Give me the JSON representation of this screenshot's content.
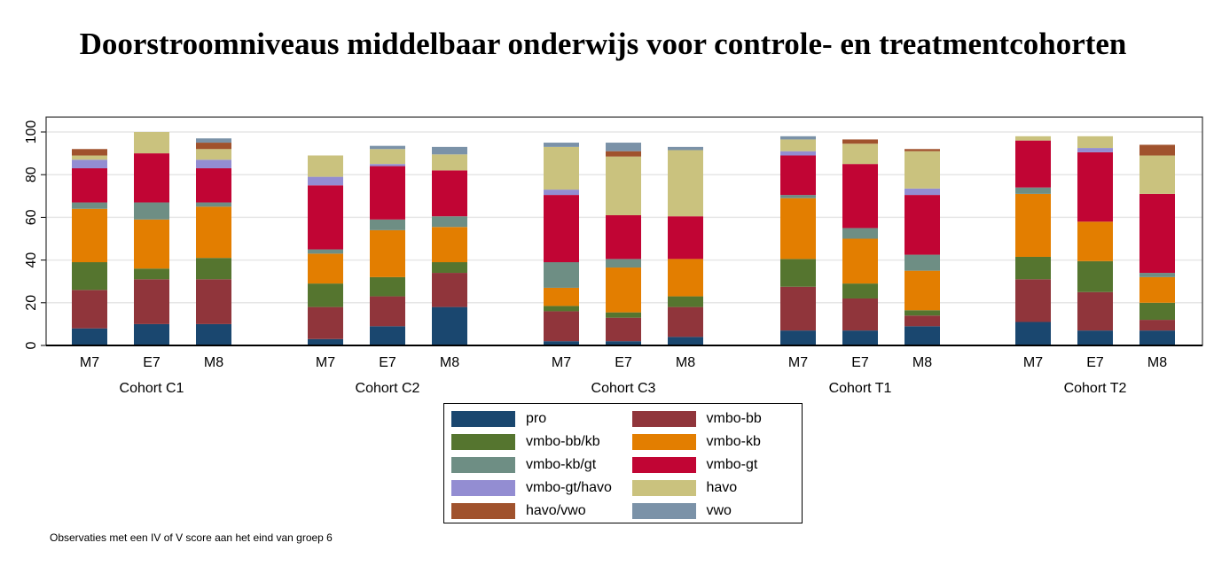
{
  "chart_data": {
    "type": "bar",
    "stacked": true,
    "title": "Doorstroomniveaus middelbaar onderwijs voor controle- en treatmentcohorten",
    "note": "Observaties met een IV of V score aan het eind van groep 6",
    "ylim": [
      0,
      107
    ],
    "yticks": [
      0,
      20,
      40,
      60,
      80,
      100
    ],
    "grid": true,
    "legend_position": "bottom",
    "groups": [
      "Cohort C1",
      "Cohort C2",
      "Cohort C3",
      "Cohort T1",
      "Cohort T2"
    ],
    "categories": [
      "M7",
      "E7",
      "M8"
    ],
    "series": [
      {
        "name": "pro",
        "color": "#1a476f",
        "values": [
          [
            8,
            10,
            10
          ],
          [
            3,
            9,
            18
          ],
          [
            2,
            2,
            4
          ],
          [
            7,
            7,
            9
          ],
          [
            11,
            7,
            7
          ]
        ]
      },
      {
        "name": "vmbo-bb",
        "color": "#90353b",
        "values": [
          [
            18,
            21,
            21
          ],
          [
            15,
            14,
            16
          ],
          [
            14,
            11,
            14
          ],
          [
            20.5,
            15,
            5
          ],
          [
            20,
            18,
            5
          ]
        ]
      },
      {
        "name": "vmbo-bb/kb",
        "color": "#55752f",
        "values": [
          [
            13,
            5,
            10
          ],
          [
            11,
            9,
            5
          ],
          [
            2.5,
            2.5,
            5
          ],
          [
            13,
            7,
            2.5
          ],
          [
            10.5,
            14.5,
            8
          ]
        ]
      },
      {
        "name": "vmbo-kb",
        "color": "#e37e00",
        "values": [
          [
            25,
            23,
            24
          ],
          [
            14,
            22,
            16.5
          ],
          [
            8.5,
            21,
            17.5
          ],
          [
            28.5,
            21,
            18.5
          ],
          [
            29.5,
            18.5,
            12
          ]
        ]
      },
      {
        "name": "vmbo-kb/gt",
        "color": "#6e8e84",
        "values": [
          [
            3,
            8,
            2
          ],
          [
            2,
            5,
            5
          ],
          [
            12,
            4,
            0
          ],
          [
            1.5,
            5,
            7.5
          ],
          [
            3,
            0,
            2
          ]
        ]
      },
      {
        "name": "vmbo-gt",
        "color": "#c10534",
        "values": [
          [
            16,
            23,
            16
          ],
          [
            30,
            25,
            21.5
          ],
          [
            31.5,
            20.5,
            20
          ],
          [
            18.5,
            30,
            28
          ],
          [
            22,
            32.5,
            37
          ]
        ]
      },
      {
        "name": "vmbo-gt/havo",
        "color": "#938dd2",
        "values": [
          [
            4,
            0,
            4
          ],
          [
            4,
            1,
            0
          ],
          [
            2.5,
            0,
            0
          ],
          [
            2,
            0,
            3
          ],
          [
            0,
            2,
            0
          ]
        ]
      },
      {
        "name": "havo",
        "color": "#cac27e",
        "values": [
          [
            2,
            10,
            5
          ],
          [
            10,
            7,
            7.5
          ],
          [
            20,
            27.5,
            31
          ],
          [
            5.5,
            9.5,
            17.5
          ],
          [
            2,
            5.5,
            18
          ]
        ]
      },
      {
        "name": "havo/vwo",
        "color": "#a0522d",
        "values": [
          [
            3,
            0,
            3
          ],
          [
            0,
            0,
            0
          ],
          [
            0,
            2.5,
            0
          ],
          [
            0,
            2,
            1
          ],
          [
            0,
            0,
            5
          ]
        ]
      },
      {
        "name": "vwo",
        "color": "#7b92a8",
        "values": [
          [
            0,
            0,
            2
          ],
          [
            0,
            1.5,
            3.5
          ],
          [
            2,
            4,
            1.5
          ],
          [
            1.5,
            0,
            0
          ],
          [
            0,
            0,
            0
          ]
        ]
      }
    ]
  }
}
